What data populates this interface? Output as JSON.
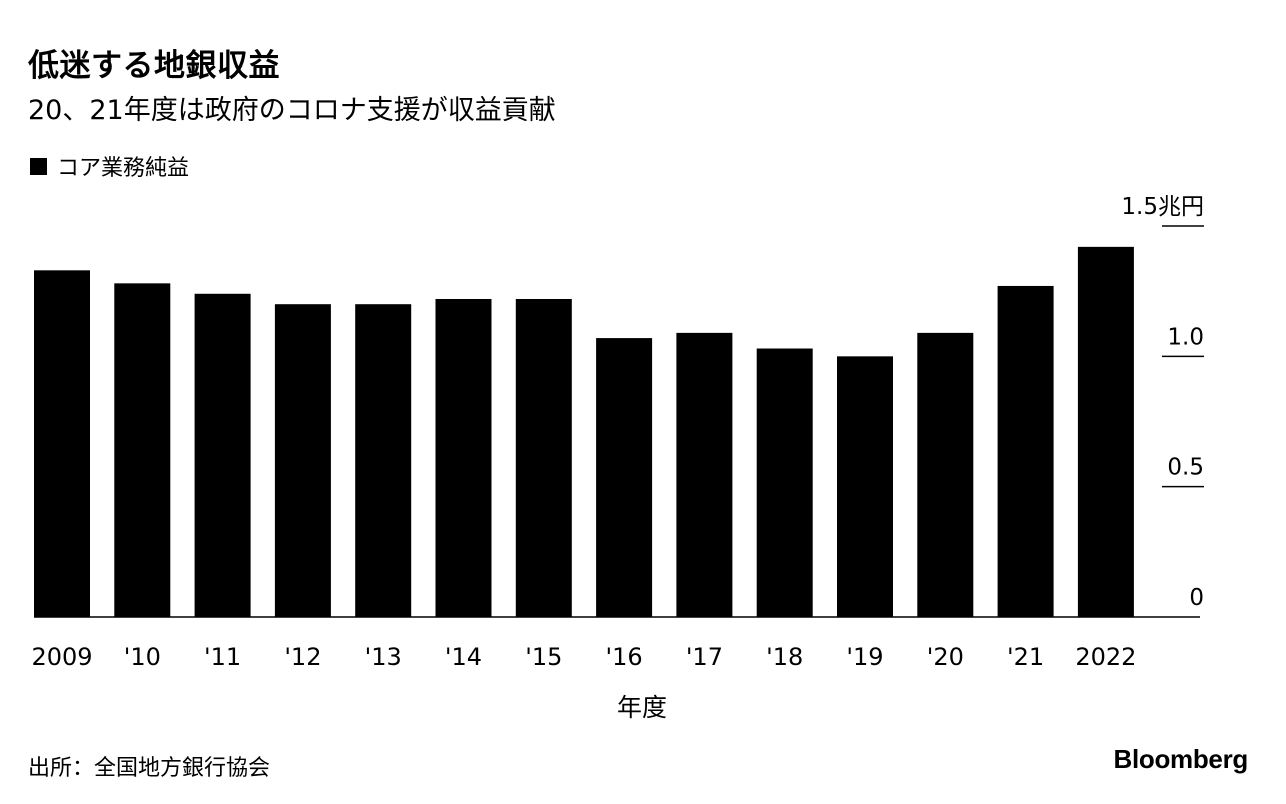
{
  "title": "低迷する地銀収益",
  "subtitle": "20、21年度は政府のコロナ支援が収益貢献",
  "legend": {
    "label": "コア業務純益",
    "color": "#000000"
  },
  "source": "出所：全国地方銀行協会",
  "brand": "Bloomberg",
  "chart_data": {
    "type": "bar",
    "categories": [
      "2009",
      "'10",
      "'11",
      "'12",
      "'13",
      "'14",
      "'15",
      "'16",
      "'17",
      "'18",
      "'19",
      "'20",
      "'21",
      "2022"
    ],
    "series": [
      {
        "name": "コア業務純益",
        "values": [
          1.33,
          1.28,
          1.24,
          1.2,
          1.2,
          1.22,
          1.22,
          1.07,
          1.09,
          1.03,
          1.0,
          1.09,
          1.27,
          1.42
        ]
      }
    ],
    "xlabel": "年度",
    "ylabel": "",
    "yticks": [
      {
        "value": 0,
        "label": "0"
      },
      {
        "value": 0.5,
        "label": "0.5"
      },
      {
        "value": 1.0,
        "label": "1.0"
      },
      {
        "value": 1.5,
        "label": "1.5兆円"
      }
    ],
    "ylim": [
      0,
      1.5
    ],
    "grid": false,
    "y_axis_side": "right",
    "bar_color": "#000000"
  }
}
